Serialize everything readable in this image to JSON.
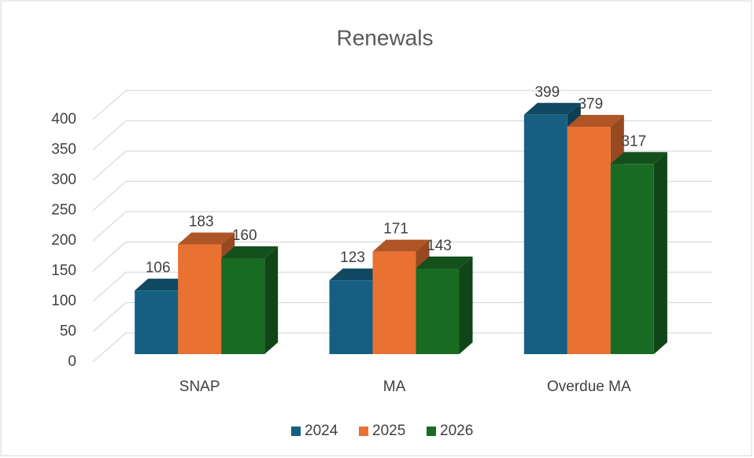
{
  "chart_data": {
    "type": "bar",
    "title": "Renewals",
    "categories": [
      "SNAP",
      "MA",
      "Overdue MA"
    ],
    "series": [
      {
        "name": "2024",
        "color": "#156082",
        "values": [
          106,
          123,
          399
        ]
      },
      {
        "name": "2025",
        "color": "#e97132",
        "values": [
          183,
          171,
          379
        ]
      },
      {
        "name": "2026",
        "color": "#196b24",
        "values": [
          160,
          143,
          317
        ]
      }
    ],
    "ylim": [
      0,
      400
    ],
    "yticks": [
      0,
      50,
      100,
      150,
      200,
      250,
      300,
      350,
      400
    ],
    "grid": true,
    "legend": "bottom"
  }
}
